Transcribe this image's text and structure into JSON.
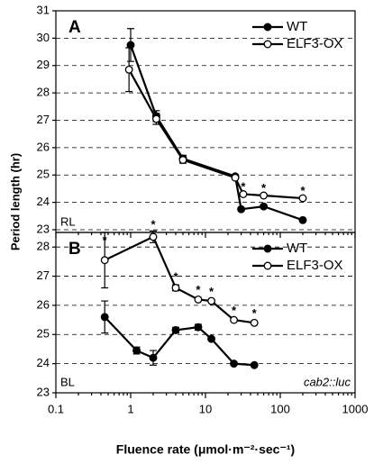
{
  "chart_data": [
    {
      "type": "line",
      "panel": "A",
      "condition": "RL",
      "y_label": "Period length (hr)",
      "xlog": true,
      "xlim": [
        0.1,
        1000
      ],
      "ylim": [
        22.9,
        31
      ],
      "yticks": [
        23,
        24,
        25,
        26,
        27,
        28,
        29,
        30,
        31
      ],
      "grid": true,
      "legend": "upper right",
      "series": [
        {
          "name": "WT",
          "color": "#000000",
          "marker_fill": "#000000",
          "x": [
            1,
            2.2,
            5,
            25,
            30,
            60,
            200
          ],
          "values": [
            29.75,
            27.15,
            25.6,
            24.95,
            23.75,
            23.85,
            23.35
          ],
          "errors": [
            0.6,
            0.2,
            0.12,
            null,
            null,
            null,
            null
          ]
        },
        {
          "name": "ELF3-OX",
          "color": "#000000",
          "marker_fill": "#ffffff",
          "x": [
            0.95,
            2.2,
            5,
            25,
            32,
            60,
            200
          ],
          "values": [
            28.85,
            27.05,
            25.55,
            24.9,
            24.3,
            24.25,
            24.15
          ],
          "errors": [
            0.8,
            0.2,
            0.12,
            null,
            null,
            null,
            null
          ]
        }
      ],
      "annotations": [
        {
          "text": "*",
          "x": 32,
          "y": 24.55
        },
        {
          "text": "*",
          "x": 60,
          "y": 24.5
        },
        {
          "text": "*",
          "x": 200,
          "y": 24.4
        }
      ]
    },
    {
      "type": "line",
      "panel": "B",
      "condition": "BL",
      "reporter": "cab2::luc",
      "x_label": "Fluence rate (μmol·m⁻²·sec⁻¹)",
      "xlog": true,
      "xlim": [
        0.1,
        1000
      ],
      "xticks": [
        0.1,
        1,
        10,
        100,
        1000
      ],
      "xminorticks": [
        0.2,
        0.3,
        0.4,
        0.5,
        0.6,
        0.7,
        0.8,
        0.9,
        2,
        3,
        4,
        5,
        6,
        7,
        8,
        9,
        20,
        30,
        40,
        50,
        60,
        70,
        80,
        90,
        200,
        300,
        400,
        500,
        600,
        700,
        800,
        900
      ],
      "ylim": [
        23,
        28.5
      ],
      "yticks": [
        23,
        24,
        25,
        26,
        27,
        28
      ],
      "grid": true,
      "legend": "upper right",
      "series": [
        {
          "name": "WT",
          "color": "#000000",
          "marker_fill": "#000000",
          "x": [
            0.45,
            1.2,
            2,
            4,
            8,
            12,
            24,
            45
          ],
          "values": [
            25.6,
            24.45,
            24.2,
            25.15,
            25.25,
            24.85,
            24.0,
            23.95
          ],
          "errors": [
            0.55,
            0.12,
            0.25,
            0.1,
            0.1,
            null,
            null,
            null
          ]
        },
        {
          "name": "ELF3-OX",
          "color": "#000000",
          "marker_fill": "#ffffff",
          "x": [
            0.45,
            2,
            4,
            8,
            12,
            24,
            45
          ],
          "values": [
            27.55,
            28.35,
            26.6,
            26.2,
            26.15,
            25.5,
            25.4
          ],
          "errors": [
            0.95,
            0.2,
            0.1,
            null,
            null,
            null,
            null
          ]
        }
      ],
      "annotations": [
        {
          "text": "*",
          "x": 0.45,
          "y": 28.2
        },
        {
          "text": "*",
          "x": 2,
          "y": 28.75
        },
        {
          "text": "*",
          "x": 4,
          "y": 26.95
        },
        {
          "text": "*",
          "x": 8,
          "y": 26.5
        },
        {
          "text": "*",
          "x": 12,
          "y": 26.45
        },
        {
          "text": "*",
          "x": 24,
          "y": 25.8
        },
        {
          "text": "*",
          "x": 45,
          "y": 25.7
        }
      ]
    }
  ]
}
